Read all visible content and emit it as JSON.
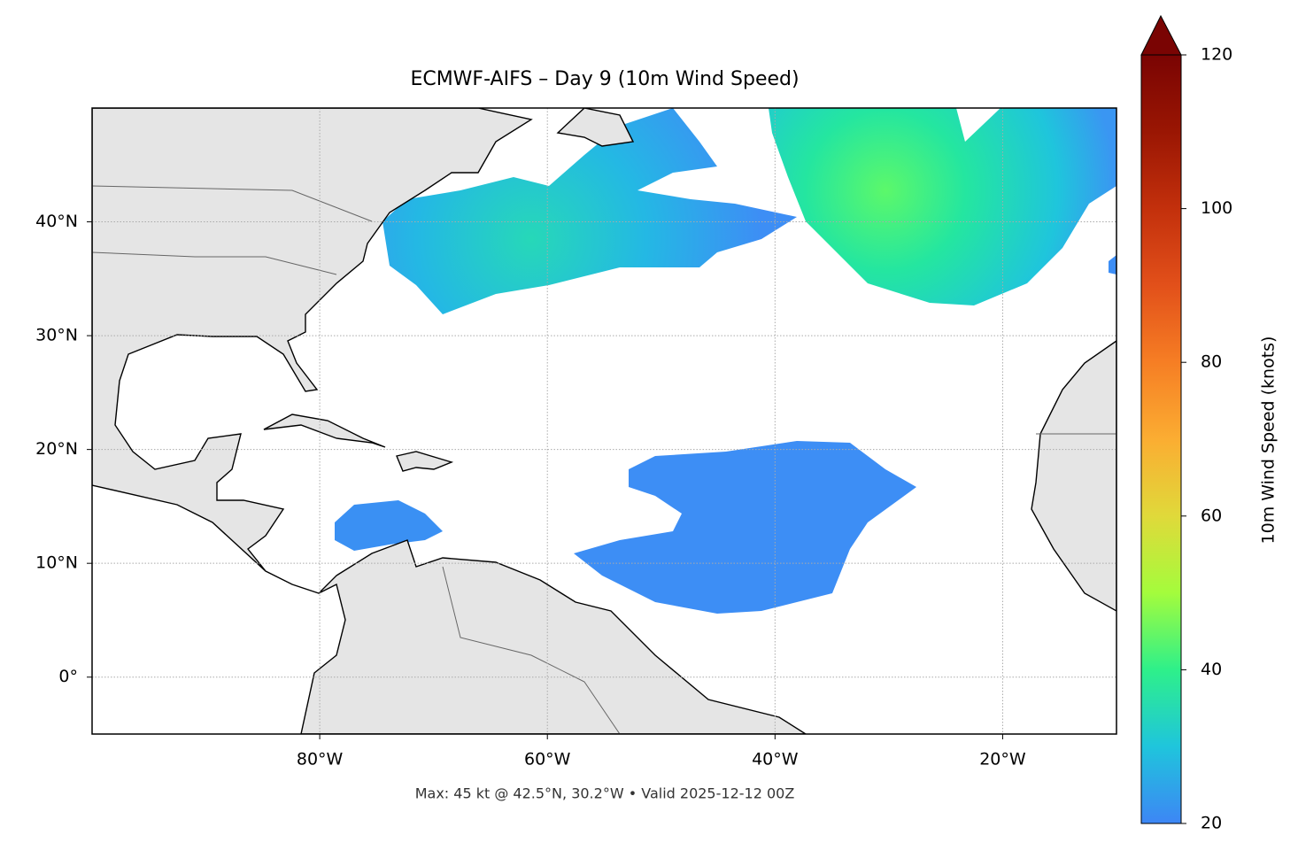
{
  "chart_data": {
    "type": "map",
    "title": "ECMWF-AIFS – Day 9 (10m Wind Speed)",
    "footnote": "Max: 45 kt @ 42.5°N, 30.2°W • Valid 2025-12-12 00Z",
    "xlim": [
      -100,
      -10
    ],
    "ylim": [
      -5,
      50
    ],
    "xticks": [
      {
        "value": -80,
        "label": "80°W"
      },
      {
        "value": -60,
        "label": "60°W"
      },
      {
        "value": -40,
        "label": "40°W"
      },
      {
        "value": -20,
        "label": "20°W"
      }
    ],
    "yticks": [
      {
        "value": 0,
        "label": "0°"
      },
      {
        "value": 10,
        "label": "10°N"
      },
      {
        "value": 20,
        "label": "20°N"
      },
      {
        "value": 30,
        "label": "30°N"
      },
      {
        "value": 40,
        "label": "40°N"
      }
    ],
    "grid": true,
    "colorbar": {
      "label": "10m Wind Speed (knots)",
      "lim": [
        20,
        120
      ],
      "ticks": [
        20,
        40,
        60,
        80,
        100,
        120
      ],
      "colors": [
        "#3d86f5",
        "#1fc5dc",
        "#2ef08a",
        "#a4fc3c",
        "#e0d93a",
        "#fbad32",
        "#f67e24",
        "#e2501a",
        "#c3300c",
        "#9a1603",
        "#7a0403"
      ]
    }
  }
}
